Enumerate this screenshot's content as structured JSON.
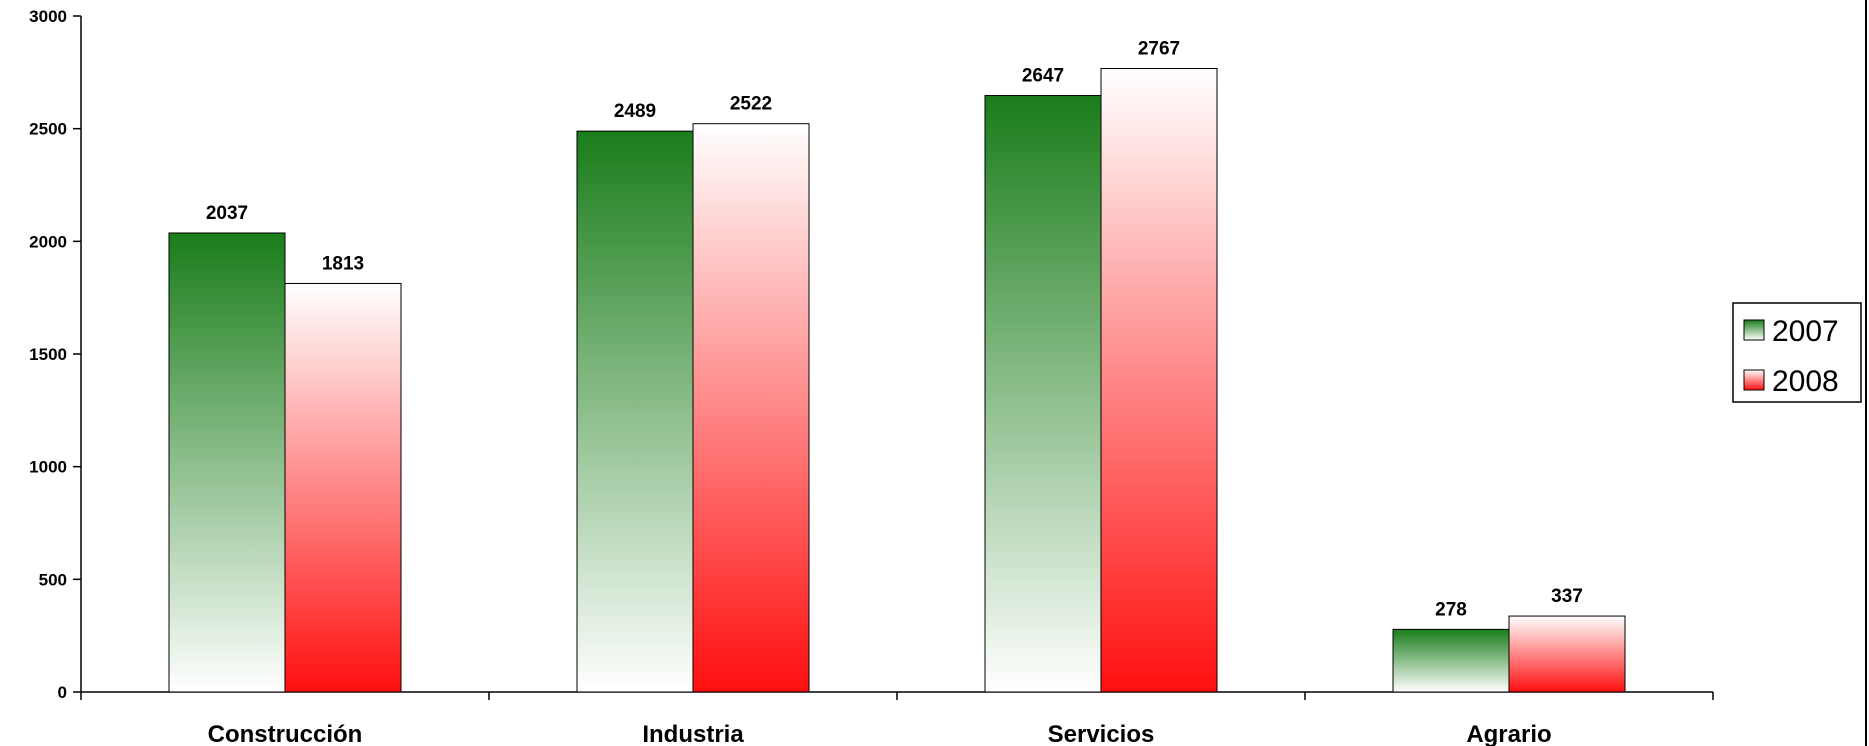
{
  "chart_data": {
    "type": "bar",
    "categories": [
      "Construcción",
      "Industria",
      "Servicios",
      "Agrario"
    ],
    "series": [
      {
        "name": "2007",
        "values": [
          2037,
          2489,
          2647,
          278
        ],
        "color_top": "#1a7d1a",
        "color_bottom": "#ffffff"
      },
      {
        "name": "2008",
        "values": [
          1813,
          2522,
          2767,
          337
        ],
        "color_top": "#ffffff",
        "color_bottom": "#ff0f0f"
      }
    ],
    "ylim": [
      0,
      3000
    ],
    "yticks": [
      0,
      500,
      1000,
      1500,
      2000,
      2500,
      3000
    ],
    "data_labels": true,
    "legend_position": "right",
    "grid": false,
    "title": "",
    "xlabel": "",
    "ylabel": ""
  }
}
